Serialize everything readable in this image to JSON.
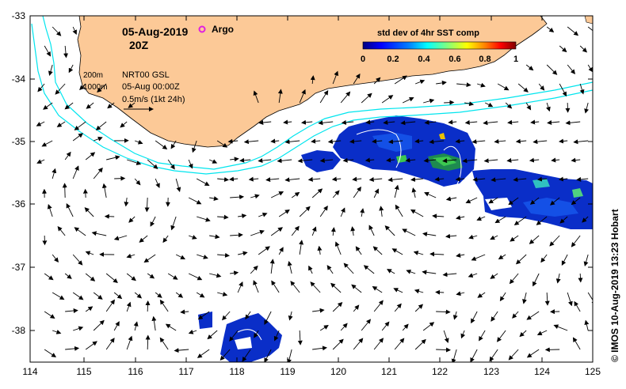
{
  "header": {
    "date": "05-Aug-2019",
    "time": "20Z",
    "argo_label": "Argo",
    "argo_color": "#e020e0"
  },
  "legend": {
    "isobath_1": "200m",
    "isobath_2": "1000m",
    "product": "NRT00 GSL",
    "product_time": "05-Aug 00:00Z",
    "vector_scale": "0.5m/s (1kt 24h)"
  },
  "colorbar": {
    "title": "std dev of 4hr SST comp",
    "ticks": [
      "0",
      "0.2",
      "0.4",
      "0.6",
      "0.8",
      "1"
    ],
    "colormap": [
      "#00007f",
      "#0000ff",
      "#007fff",
      "#00ffff",
      "#7fff7f",
      "#ffff00",
      "#ff7f00",
      "#ff0000",
      "#7f0000"
    ]
  },
  "axes": {
    "lon_ticks": [
      "114",
      "115",
      "116",
      "117",
      "118",
      "119",
      "120",
      "121",
      "122",
      "123",
      "124",
      "125"
    ],
    "lat_ticks": [
      "-33",
      "-34",
      "-35",
      "-36",
      "-37",
      "-38"
    ]
  },
  "colors": {
    "land": "#fcc997",
    "isobath": "#00e5ee"
  },
  "credit": "© IMOS 10-Aug-2019 13:23 Hobart"
}
